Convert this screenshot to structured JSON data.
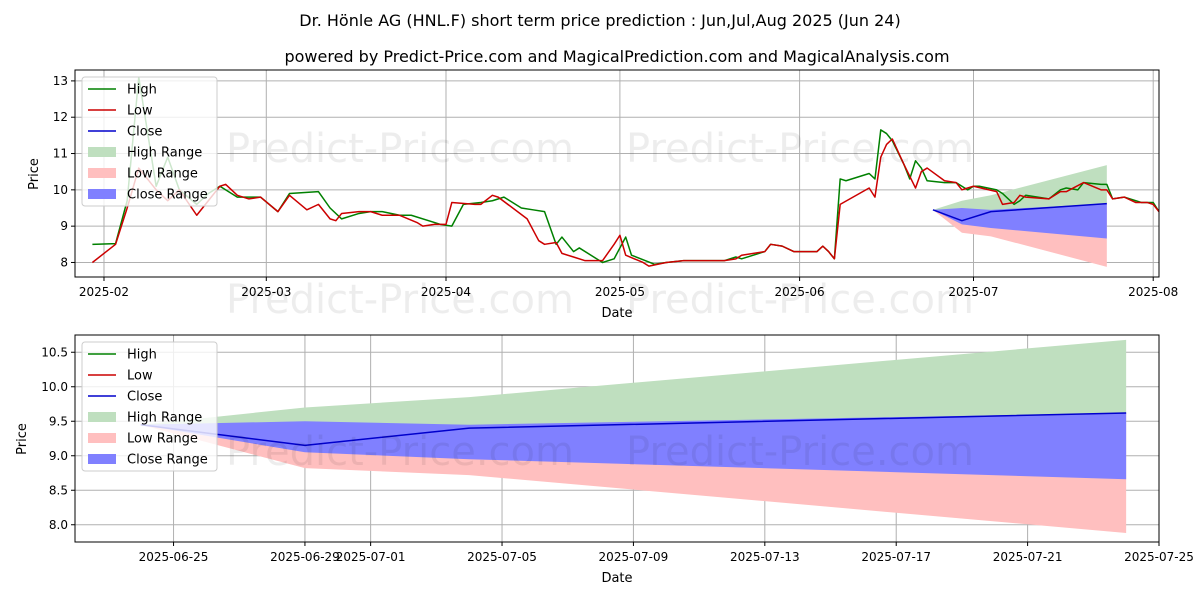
{
  "title": "Dr. Hönle AG (HNL.F) short term price prediction : Jun,Jul,Aug 2025 (Jun 24)",
  "subtitle": "powered by Predict-Price.com and MagicalPrediction.com and MagicalAnalysis.com",
  "watermark": "Predict-Price.com",
  "colors": {
    "high": "#008000",
    "low": "#cc0000",
    "close": "#0000cc",
    "high_range": "#bfdfbf",
    "low_range": "#ffbfbf",
    "close_range": "#8080ff",
    "grid": "#b0b0b0"
  },
  "chart_data": [
    {
      "type": "line",
      "xlabel": "Date",
      "ylabel": "Price",
      "xlim": [
        "2025-01-27",
        "2025-08-02"
      ],
      "ylim": [
        7.6,
        13.3
      ],
      "grid": true,
      "legend_position": "top-left",
      "legend": [
        "High",
        "Low",
        "Close",
        "High Range",
        "Low Range",
        "Close Range"
      ],
      "x_ticks": [
        "2025-02",
        "2025-03",
        "2025-04",
        "2025-05",
        "2025-06",
        "2025-07",
        "2025-08"
      ],
      "x_tick_dates": [
        "2025-02-01",
        "2025-03-01",
        "2025-04-01",
        "2025-05-01",
        "2025-06-01",
        "2025-07-01",
        "2025-08-01"
      ],
      "y_ticks": [
        "8",
        "9",
        "10",
        "11",
        "12",
        "13"
      ],
      "series": [
        {
          "name": "High",
          "points": [
            [
              "2025-01-30",
              8.5
            ],
            [
              "2025-02-03",
              8.52
            ],
            [
              "2025-02-05",
              9.7
            ],
            [
              "2025-02-07",
              13.1
            ],
            [
              "2025-02-10",
              10.1
            ],
            [
              "2025-02-12",
              10.9
            ],
            [
              "2025-02-14",
              10.0
            ],
            [
              "2025-02-17",
              9.6
            ],
            [
              "2025-02-19",
              9.9
            ],
            [
              "2025-02-21",
              10.1
            ],
            [
              "2025-02-24",
              9.8
            ],
            [
              "2025-02-26",
              9.8
            ],
            [
              "2025-02-28",
              9.8
            ],
            [
              "2025-03-03",
              9.4
            ],
            [
              "2025-03-05",
              9.9
            ],
            [
              "2025-03-10",
              9.95
            ],
            [
              "2025-03-12",
              9.5
            ],
            [
              "2025-03-14",
              9.2
            ],
            [
              "2025-03-17",
              9.35
            ],
            [
              "2025-03-19",
              9.4
            ],
            [
              "2025-03-21",
              9.4
            ],
            [
              "2025-03-24",
              9.3
            ],
            [
              "2025-03-26",
              9.3
            ],
            [
              "2025-03-31",
              9.05
            ],
            [
              "2025-04-02",
              9.0
            ],
            [
              "2025-04-04",
              9.6
            ],
            [
              "2025-04-07",
              9.65
            ],
            [
              "2025-04-09",
              9.7
            ],
            [
              "2025-04-11",
              9.8
            ],
            [
              "2025-04-14",
              9.5
            ],
            [
              "2025-04-16",
              9.45
            ],
            [
              "2025-04-18",
              9.4
            ],
            [
              "2025-04-20",
              8.5
            ],
            [
              "2025-04-21",
              8.7
            ],
            [
              "2025-04-23",
              8.3
            ],
            [
              "2025-04-24",
              8.4
            ],
            [
              "2025-04-28",
              8.0
            ],
            [
              "2025-04-30",
              8.1
            ],
            [
              "2025-05-02",
              8.7
            ],
            [
              "2025-05-03",
              8.2
            ],
            [
              "2025-05-07",
              7.95
            ],
            [
              "2025-05-09",
              8.0
            ],
            [
              "2025-05-12",
              8.05
            ],
            [
              "2025-05-15",
              8.05
            ],
            [
              "2025-05-19",
              8.05
            ],
            [
              "2025-05-21",
              8.15
            ],
            [
              "2025-05-22",
              8.1
            ],
            [
              "2025-05-26",
              8.3
            ],
            [
              "2025-05-27",
              8.5
            ],
            [
              "2025-05-29",
              8.45
            ],
            [
              "2025-05-31",
              8.3
            ],
            [
              "2025-06-02",
              8.3
            ],
            [
              "2025-06-04",
              8.3
            ],
            [
              "2025-06-05",
              8.45
            ],
            [
              "2025-06-06",
              8.3
            ],
            [
              "2025-06-07",
              8.1
            ],
            [
              "2025-06-08",
              10.3
            ],
            [
              "2025-06-09",
              10.25
            ],
            [
              "2025-06-13",
              10.45
            ],
            [
              "2025-06-14",
              10.3
            ],
            [
              "2025-06-15",
              11.65
            ],
            [
              "2025-06-16",
              11.55
            ],
            [
              "2025-06-17",
              11.35
            ],
            [
              "2025-06-19",
              10.7
            ],
            [
              "2025-06-20",
              10.3
            ],
            [
              "2025-06-21",
              10.8
            ],
            [
              "2025-06-22",
              10.6
            ],
            [
              "2025-06-23",
              10.25
            ],
            [
              "2025-06-26",
              10.2
            ],
            [
              "2025-06-28",
              10.2
            ],
            [
              "2025-06-30",
              10.0
            ],
            [
              "2025-07-01",
              10.1
            ],
            [
              "2025-07-02",
              10.1
            ],
            [
              "2025-07-05",
              10.0
            ],
            [
              "2025-07-06",
              9.9
            ],
            [
              "2025-07-08",
              9.6
            ],
            [
              "2025-07-09",
              9.7
            ],
            [
              "2025-07-10",
              9.85
            ],
            [
              "2025-07-14",
              9.75
            ],
            [
              "2025-07-16",
              10.0
            ],
            [
              "2025-07-17",
              10.05
            ],
            [
              "2025-07-19",
              10.0
            ],
            [
              "2025-07-20",
              10.2
            ],
            [
              "2025-07-23",
              10.15
            ],
            [
              "2025-07-24",
              10.15
            ],
            [
              "2025-07-25",
              9.75
            ],
            [
              "2025-07-27",
              9.8
            ],
            [
              "2025-07-29",
              9.7
            ],
            [
              "2025-07-30",
              9.65
            ],
            [
              "2025-08-01",
              9.65
            ],
            [
              "2025-08-02",
              9.4
            ]
          ]
        },
        {
          "name": "Low",
          "points": [
            [
              "2025-01-30",
              8.0
            ],
            [
              "2025-02-03",
              8.5
            ],
            [
              "2025-02-05",
              9.5
            ],
            [
              "2025-02-07",
              10.6
            ],
            [
              "2025-02-10",
              10.0
            ],
            [
              "2025-02-12",
              9.7
            ],
            [
              "2025-02-14",
              10.0
            ],
            [
              "2025-02-17",
              9.3
            ],
            [
              "2025-02-19",
              9.7
            ],
            [
              "2025-02-21",
              10.1
            ],
            [
              "2025-02-22",
              10.15
            ],
            [
              "2025-02-24",
              9.85
            ],
            [
              "2025-02-26",
              9.75
            ],
            [
              "2025-02-28",
              9.8
            ],
            [
              "2025-03-03",
              9.4
            ],
            [
              "2025-03-05",
              9.85
            ],
            [
              "2025-03-08",
              9.45
            ],
            [
              "2025-03-10",
              9.6
            ],
            [
              "2025-03-12",
              9.2
            ],
            [
              "2025-03-13",
              9.15
            ],
            [
              "2025-03-14",
              9.35
            ],
            [
              "2025-03-17",
              9.4
            ],
            [
              "2025-03-19",
              9.4
            ],
            [
              "2025-03-21",
              9.3
            ],
            [
              "2025-03-24",
              9.3
            ],
            [
              "2025-03-27",
              9.1
            ],
            [
              "2025-03-28",
              9.0
            ],
            [
              "2025-03-30",
              9.05
            ],
            [
              "2025-04-01",
              9.05
            ],
            [
              "2025-04-02",
              9.65
            ],
            [
              "2025-04-06",
              9.6
            ],
            [
              "2025-04-07",
              9.6
            ],
            [
              "2025-04-09",
              9.85
            ],
            [
              "2025-04-10",
              9.8
            ],
            [
              "2025-04-15",
              9.2
            ],
            [
              "2025-04-17",
              8.6
            ],
            [
              "2025-04-18",
              8.5
            ],
            [
              "2025-04-20",
              8.55
            ],
            [
              "2025-04-21",
              8.25
            ],
            [
              "2025-04-23",
              8.15
            ],
            [
              "2025-04-25",
              8.05
            ],
            [
              "2025-04-28",
              8.05
            ],
            [
              "2025-04-30",
              8.5
            ],
            [
              "2025-05-01",
              8.75
            ],
            [
              "2025-05-02",
              8.2
            ],
            [
              "2025-05-05",
              8.0
            ],
            [
              "2025-05-06",
              7.9
            ],
            [
              "2025-05-09",
              8.0
            ],
            [
              "2025-05-12",
              8.05
            ],
            [
              "2025-05-15",
              8.05
            ],
            [
              "2025-05-19",
              8.05
            ],
            [
              "2025-05-21",
              8.1
            ],
            [
              "2025-05-22",
              8.2
            ],
            [
              "2025-05-26",
              8.3
            ],
            [
              "2025-05-27",
              8.5
            ],
            [
              "2025-05-29",
              8.45
            ],
            [
              "2025-05-31",
              8.3
            ],
            [
              "2025-06-04",
              8.3
            ],
            [
              "2025-06-05",
              8.45
            ],
            [
              "2025-06-06",
              8.3
            ],
            [
              "2025-06-07",
              8.1
            ],
            [
              "2025-06-08",
              9.6
            ],
            [
              "2025-06-13",
              10.05
            ],
            [
              "2025-06-14",
              9.8
            ],
            [
              "2025-06-15",
              10.9
            ],
            [
              "2025-06-16",
              11.25
            ],
            [
              "2025-06-17",
              11.4
            ],
            [
              "2025-06-19",
              10.7
            ],
            [
              "2025-06-21",
              10.05
            ],
            [
              "2025-06-22",
              10.5
            ],
            [
              "2025-06-23",
              10.6
            ],
            [
              "2025-06-26",
              10.25
            ],
            [
              "2025-06-28",
              10.2
            ],
            [
              "2025-06-29",
              10.0
            ],
            [
              "2025-06-30",
              10.05
            ],
            [
              "2025-07-01",
              10.1
            ],
            [
              "2025-07-05",
              9.95
            ],
            [
              "2025-07-06",
              9.6
            ],
            [
              "2025-07-08",
              9.65
            ],
            [
              "2025-07-09",
              9.85
            ],
            [
              "2025-07-10",
              9.8
            ],
            [
              "2025-07-14",
              9.75
            ],
            [
              "2025-07-16",
              9.95
            ],
            [
              "2025-07-17",
              9.95
            ],
            [
              "2025-07-20",
              10.2
            ],
            [
              "2025-07-23",
              10.0
            ],
            [
              "2025-07-24",
              10.0
            ],
            [
              "2025-07-25",
              9.75
            ],
            [
              "2025-07-27",
              9.8
            ],
            [
              "2025-07-29",
              9.65
            ],
            [
              "2025-07-31",
              9.65
            ],
            [
              "2025-08-01",
              9.6
            ],
            [
              "2025-08-02",
              9.4
            ]
          ]
        }
      ]
    },
    {
      "type": "line",
      "xlabel": "Date",
      "ylabel": "Price",
      "xlim": [
        "2025-06-22",
        "2025-07-25"
      ],
      "ylim": [
        7.75,
        10.75
      ],
      "grid": true,
      "legend_position": "top-left",
      "legend": [
        "High",
        "Low",
        "Close",
        "High Range",
        "Low Range",
        "Close Range"
      ],
      "x_ticks": [
        "2025-06-25",
        "2025-06-29",
        "2025-07-01",
        "2025-07-05",
        "2025-07-09",
        "2025-07-13",
        "2025-07-17",
        "2025-07-21",
        "2025-07-25"
      ],
      "y_ticks": [
        "8.0",
        "8.5",
        "9.0",
        "9.5",
        "10.0",
        "10.5"
      ],
      "x": [
        "2025-06-24",
        "2025-06-29",
        "2025-07-04",
        "2025-07-24"
      ],
      "series": [
        {
          "name": "Close",
          "values": [
            9.45,
            9.15,
            9.4,
            9.62
          ]
        },
        {
          "name": "High Range",
          "lower": [
            9.45,
            9.15,
            9.4,
            9.62
          ],
          "upper": [
            9.45,
            9.7,
            9.85,
            10.68
          ]
        },
        {
          "name": "Low Range",
          "lower": [
            9.45,
            8.82,
            8.72,
            7.88
          ],
          "upper": [
            9.45,
            9.15,
            9.4,
            9.62
          ]
        },
        {
          "name": "Close Range",
          "lower": [
            9.45,
            9.05,
            8.95,
            8.66
          ],
          "upper": [
            9.45,
            9.5,
            9.45,
            9.62
          ]
        }
      ]
    }
  ]
}
